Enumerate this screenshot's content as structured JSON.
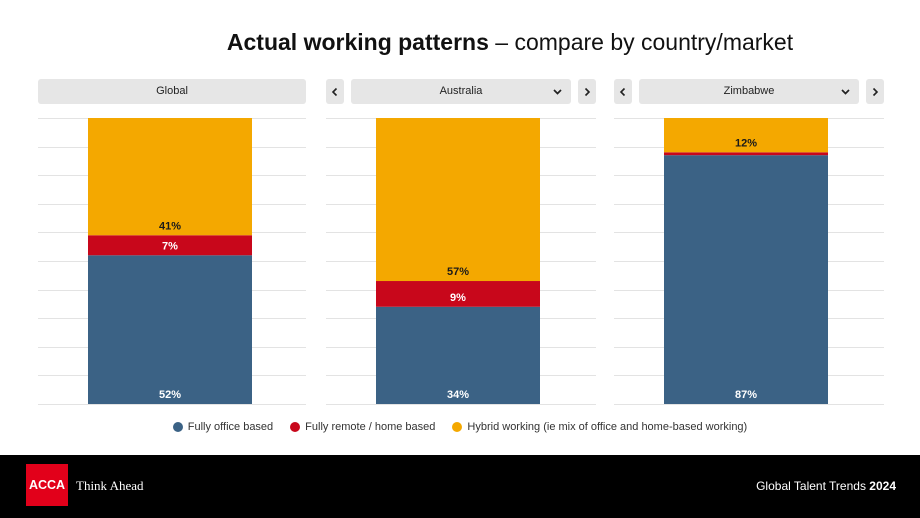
{
  "title": {
    "bold": "Actual working patterns",
    "regular": "– compare by country/market"
  },
  "icons": {
    "prev": "chevron-left-icon",
    "next": "chevron-right-icon",
    "dropdown": "chevron-down-icon"
  },
  "colors": {
    "header_background": "#e6e6e6",
    "brand_red": "#e2001a",
    "footer_background": "#000000",
    "gridline": "#e3e3e3"
  },
  "chart_data": {
    "type": "bar",
    "stacked": true,
    "categories": [
      "Global",
      "Australia",
      "Zimbabwe"
    ],
    "ylim": [
      0,
      100
    ],
    "grid": true,
    "legend": "bottom",
    "series": [
      {
        "name": "Fully office based",
        "color": "#3b6285",
        "label_color": "#ffffff",
        "values": [
          52,
          34,
          87
        ],
        "data_labels": [
          "52%",
          "34%",
          "87%"
        ]
      },
      {
        "name": "Fully remote / home based",
        "color": "#c8071b",
        "label_color": "#ffffff",
        "values": [
          7,
          9,
          1
        ],
        "data_labels": [
          "7%",
          "9%",
          null
        ]
      },
      {
        "name": "Hybrid working (ie mix of office and home-based working)",
        "color": "#f4a800",
        "label_color": "#1a1a1a",
        "values": [
          41,
          57,
          12
        ],
        "data_labels": [
          "41%",
          "57%",
          "12%"
        ]
      }
    ]
  },
  "footer": {
    "logo_text": "ACCA",
    "tagline": "Think Ahead",
    "report_title": "Global Talent Trends",
    "report_year": "2024"
  }
}
